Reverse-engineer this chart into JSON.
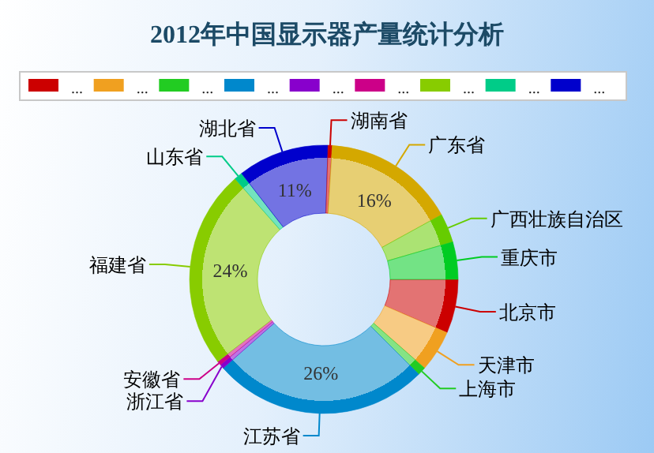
{
  "chart_data": {
    "type": "donut",
    "title": "2012年中国显示器产量统计分析",
    "categories": [
      "北京市",
      "天津市",
      "上海市",
      "江苏省",
      "浙江省",
      "安徽省",
      "福建省",
      "山东省",
      "湖北省",
      "湖南省",
      "广东省",
      "广西壮族自治区",
      "重庆市"
    ],
    "values": [
      6.5,
      5,
      1,
      26,
      0.5,
      0.5,
      24,
      1,
      11,
      0.5,
      16,
      3.5,
      4.5
    ],
    "value_labels": [
      null,
      null,
      null,
      "26%",
      null,
      null,
      "24%",
      null,
      "11%",
      null,
      "16%",
      null,
      null
    ],
    "colors": [
      "#cc0000",
      "#f0a020",
      "#22cc22",
      "#0088cc",
      "#8800cc",
      "#cc0088",
      "#88cc00",
      "#00cc88",
      "#0000cc",
      "#cc0000",
      "#d4a800",
      "#66cc00",
      "#00cc22"
    ],
    "legend": "top",
    "annotations": [
      "...",
      "...",
      "...",
      "...",
      "...",
      "...",
      "...",
      "...",
      "..."
    ]
  }
}
